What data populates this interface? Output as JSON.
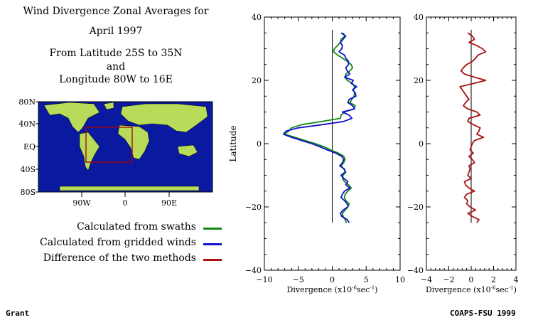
{
  "header": {
    "title_line1": "Wind Divergence Zonal Averages for",
    "title_line2": "April 1997",
    "region_line1": "From Latitude 25S to 35N",
    "region_line2": "and",
    "region_line3": "Longitude 80W to 16E"
  },
  "map": {
    "lat_labels": [
      "80N",
      "40N",
      "EQ",
      "40S",
      "80S"
    ],
    "lon_labels": [
      "90W",
      "0",
      "90E"
    ],
    "ocean_color": "#0a1aa0",
    "land_color": "#b8dc5a",
    "box_color": "#aa0000"
  },
  "legend": [
    {
      "label": "Calculated from swaths",
      "color": "#118811"
    },
    {
      "label": "Calculated from gridded winds",
      "color": "#1111cc"
    },
    {
      "label": "Difference of the two methods",
      "color": "#aa1111"
    }
  ],
  "footer": {
    "left": "Grant",
    "right": "COAPS-FSU 1999"
  },
  "chart_data": [
    {
      "type": "line",
      "ylabel": "Latitude",
      "xlabel_text": "Divergence (x10",
      "xlabel_exp1": "-6",
      "xlabel_mid": "sec",
      "xlabel_exp2": "-1",
      "xlabel_end": ")",
      "xlim": [
        -10,
        10
      ],
      "ylim": [
        -40,
        40
      ],
      "xticks": [
        -10,
        -5,
        0,
        5,
        10
      ],
      "yticks": [
        -40,
        -20,
        0,
        20,
        40
      ],
      "zero_line_range": [
        -25,
        36
      ],
      "series": [
        {
          "color": "#118811",
          "lat": [
            35,
            34,
            33,
            32,
            31,
            30,
            29,
            28,
            27,
            26,
            25,
            24,
            23,
            22,
            21,
            20,
            19,
            18,
            17,
            16,
            15,
            14,
            13,
            12,
            11,
            10,
            9,
            8,
            7,
            6,
            5,
            4,
            3,
            2,
            1,
            0,
            -1,
            -2,
            -3,
            -4,
            -5,
            -6,
            -7,
            -8,
            -9,
            -10,
            -11,
            -12,
            -13,
            -14,
            -15,
            -16,
            -17,
            -18,
            -19,
            -20,
            -21,
            -22,
            -23,
            -24,
            -25
          ],
          "values": [
            1.6,
            1.9,
            1.3,
            1.2,
            0.8,
            0.3,
            0.2,
            0.8,
            1.5,
            2.2,
            2.8,
            3.0,
            2.6,
            2.0,
            1.9,
            2.2,
            3.0,
            3.3,
            3.1,
            3.3,
            3.2,
            2.9,
            2.6,
            3.4,
            3.2,
            1.8,
            1.3,
            1.2,
            -1.5,
            -4.5,
            -6.0,
            -6.4,
            -7.0,
            -5.5,
            -4.0,
            -2.5,
            -1.2,
            -0.2,
            0.9,
            1.7,
            1.9,
            1.7,
            1.3,
            1.7,
            2.0,
            1.6,
            1.5,
            1.8,
            2.4,
            2.8,
            2.3,
            1.9,
            1.8,
            2.0,
            2.5,
            2.3,
            1.9,
            1.5,
            1.6,
            1.9,
            2.1
          ]
        },
        {
          "color": "#1111cc",
          "lat": [
            35,
            34,
            33,
            32,
            31,
            30,
            29,
            28,
            27,
            26,
            25,
            24,
            23,
            22,
            21,
            20,
            19,
            18,
            17,
            16,
            15,
            14,
            13,
            12,
            11,
            10,
            9,
            8,
            7,
            6,
            5,
            4,
            3,
            2,
            1,
            0,
            -1,
            -2,
            -3,
            -4,
            -5,
            -6,
            -7,
            -8,
            -9,
            -10,
            -11,
            -12,
            -13,
            -14,
            -15,
            -16,
            -17,
            -18,
            -19,
            -20,
            -21,
            -22,
            -23,
            -24,
            -25
          ],
          "values": [
            1.3,
            2.0,
            1.6,
            1.2,
            1.5,
            1.4,
            1.0,
            1.8,
            2.0,
            2.4,
            2.4,
            2.0,
            2.2,
            2.6,
            1.8,
            3.1,
            2.8,
            3.6,
            3.0,
            3.4,
            3.5,
            2.5,
            2.3,
            3.0,
            3.3,
            1.5,
            2.5,
            2.9,
            1.7,
            -1.5,
            -5.0,
            -6.8,
            -7.2,
            -6.0,
            -4.5,
            -3.0,
            -1.8,
            -0.7,
            0.5,
            1.4,
            1.7,
            1.5,
            1.1,
            1.8,
            1.9,
            1.3,
            1.7,
            2.3,
            2.0,
            2.6,
            1.8,
            1.5,
            1.3,
            1.8,
            2.2,
            2.3,
            1.6,
            1.2,
            1.4,
            2.2,
            2.5
          ]
        }
      ]
    },
    {
      "type": "line",
      "xlabel_text": "Divergence (x10",
      "xlabel_exp1": "-6",
      "xlabel_mid": "sec",
      "xlabel_exp2": "-1",
      "xlabel_end": ")",
      "xlim": [
        -4,
        4
      ],
      "ylim": [
        -40,
        40
      ],
      "xticks": [
        -4,
        -2,
        0,
        2,
        4
      ],
      "yticks": [
        -40,
        -20,
        0,
        20,
        40
      ],
      "zero_line_range": [
        -25,
        36
      ],
      "series": [
        {
          "color": "#aa1111",
          "lat": [
            35,
            34,
            33,
            32,
            31,
            30,
            29,
            28,
            27,
            26,
            25,
            24,
            23,
            22,
            21,
            20,
            19,
            18,
            17,
            16,
            15,
            14,
            13,
            12,
            11,
            10,
            9,
            8,
            7,
            6,
            5,
            4,
            3,
            2,
            1,
            0,
            -1,
            -2,
            -3,
            -4,
            -5,
            -6,
            -7,
            -8,
            -9,
            -10,
            -11,
            -12,
            -13,
            -14,
            -15,
            -16,
            -17,
            -18,
            -19,
            -20,
            -21,
            -22,
            -23,
            -24,
            -25
          ],
          "values": [
            -0.3,
            0.1,
            0.3,
            -0.2,
            0.5,
            1.0,
            1.3,
            0.6,
            0.4,
            0.1,
            -0.4,
            -0.7,
            -0.9,
            -0.6,
            0.3,
            1.3,
            0.2,
            -1.0,
            -0.8,
            -0.6,
            -0.4,
            -0.2,
            -0.5,
            -0.7,
            -0.3,
            0.5,
            0.8,
            -0.2,
            -0.3,
            0.2,
            0.8,
            0.7,
            0.5,
            1.1,
            0.3,
            0.1,
            0.0,
            -0.1,
            0.2,
            -0.2,
            0.1,
            0.3,
            -0.2,
            -0.1,
            -0.2,
            -0.3,
            0.0,
            -0.6,
            -0.5,
            -0.2,
            0.3,
            -0.4,
            -0.6,
            -0.3,
            -0.4,
            -0.1,
            0.4,
            -0.3,
            0.1,
            0.7,
            0.5
          ]
        }
      ]
    }
  ]
}
